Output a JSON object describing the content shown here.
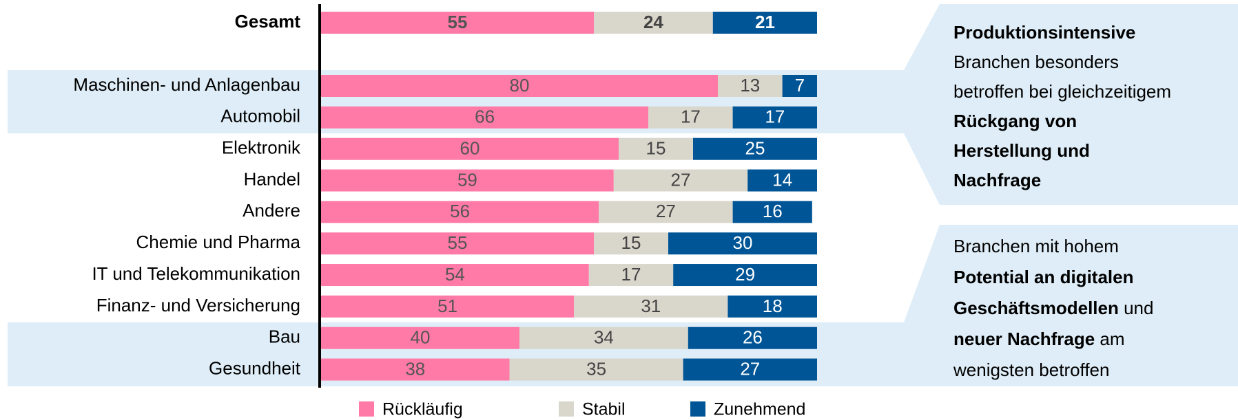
{
  "chart_data": {
    "type": "bar",
    "orientation": "horizontal",
    "stacked": true,
    "categories": [
      "Gesamt",
      "Maschinen- und Anlagenbau",
      "Automobil",
      "Elektronik",
      "Handel",
      "Andere",
      "Chemie und Pharma",
      "IT und Telekommunikation",
      "Finanz- und Versicherung",
      "Bau",
      "Gesundheit"
    ],
    "xlim": [
      0,
      100
    ],
    "series": [
      {
        "name": "Rückläufig",
        "color": "#ff7aa6",
        "values": [
          55,
          80,
          66,
          60,
          59,
          56,
          55,
          54,
          51,
          40,
          38
        ]
      },
      {
        "name": "Stabil",
        "color": "#d9d6cc",
        "values": [
          24,
          13,
          17,
          15,
          27,
          27,
          15,
          17,
          31,
          34,
          35
        ]
      },
      {
        "name": "Zunehmend",
        "color": "#005596",
        "values": [
          21,
          7,
          17,
          25,
          14,
          16,
          30,
          29,
          18,
          26,
          27
        ]
      }
    ],
    "annotations": [
      [
        [
          {
            "text": "Produktionsintensive",
            "bold": true
          }
        ],
        [
          {
            "text": "Branchen besonders",
            "bold": false
          }
        ],
        [
          {
            "text": "betroffen bei gleichzeitigem",
            "bold": false
          }
        ],
        [
          {
            "text": "Rückgang von",
            "bold": true
          }
        ],
        [
          {
            "text": "Herstellung und",
            "bold": true
          }
        ],
        [
          {
            "text": "Nachfrage",
            "bold": true
          }
        ]
      ],
      [
        [
          {
            "text": "Branchen mit hohem",
            "bold": false
          }
        ],
        [
          {
            "text": "Potential an digitalen",
            "bold": true
          }
        ],
        [
          {
            "text": "Geschäftsmodellen",
            "bold": true
          },
          {
            "text": " und",
            "bold": false
          }
        ],
        [
          {
            "text": "neuer Nachfrage",
            "bold": true
          },
          {
            "text": " am",
            "bold": false
          }
        ],
        [
          {
            "text": "wenigsten betroffen",
            "bold": false
          }
        ]
      ]
    ]
  }
}
